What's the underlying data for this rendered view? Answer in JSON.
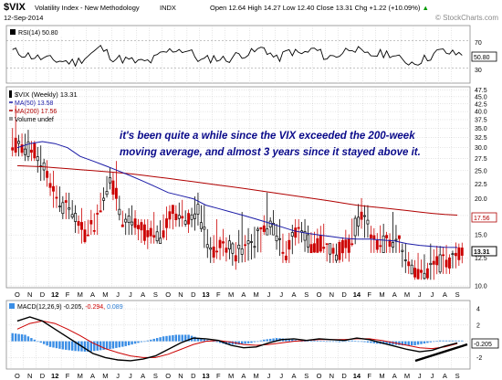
{
  "header": {
    "symbol": "$VIX",
    "name": "Volatility Index - New Methodology",
    "exchange": "INDX",
    "date": "12-Sep-2014",
    "open_label": "Open",
    "open": "12.64",
    "high_label": "High",
    "high": "14.27",
    "low_label": "Low",
    "low": "12.40",
    "close_label": "Close",
    "close": "13.31",
    "chg_label": "Chg",
    "chg": "+1.22 (+10.09%)",
    "chg_arrow": "▲",
    "watermark": "© StockCharts.com"
  },
  "annotation": {
    "line1": "it's been quite a while since the VIX exceeded the 200-week",
    "line2": "moving average, and almost 3 years since it stayed above it."
  },
  "rsi": {
    "legend": "RSI(14) 50.80",
    "tag": "50.80",
    "ticks": [
      "70",
      "30"
    ]
  },
  "price_legend": {
    "main": "$VIX (Weekly) 13.31",
    "ma50": "MA(50) 13.58",
    "ma200": "MA(200) 17.56",
    "volume": "Volume undef"
  },
  "macd_legend": {
    "main": "MACD(12,26,9) -0.205,",
    "signal": "-0.294,",
    "hist": "0.089"
  },
  "colors": {
    "up": "#000000",
    "down": "#cc0000",
    "ma50": "#1a1aa6",
    "ma200": "#b00000",
    "macd": "#000000",
    "signal": "#cc0000",
    "hist": "#3a8ee6",
    "annotation": "#0a0a8a",
    "grid": "#c8c8c8"
  },
  "chart_data": {
    "type": "candlestick",
    "title": "$VIX Volatility Index - New Methodology INDX",
    "frequency": "weekly",
    "x_tick_labels": [
      "O",
      "N",
      "D",
      "12",
      "F",
      "M",
      "A",
      "M",
      "J",
      "J",
      "A",
      "S",
      "O",
      "N",
      "D",
      "13",
      "F",
      "M",
      "A",
      "M",
      "J",
      "J",
      "A",
      "S",
      "O",
      "N",
      "D",
      "14",
      "F",
      "M",
      "A",
      "M",
      "J",
      "J",
      "A",
      "S"
    ],
    "y_scale": "log",
    "price_ticks": [
      "47.5",
      "45.0",
      "42.5",
      "40.0",
      "37.5",
      "35.0",
      "32.5",
      "30.0",
      "27.5",
      "25.0",
      "22.5",
      "20.0",
      "17.5",
      "15.0",
      "12.5",
      "10.0"
    ],
    "price_ylim": [
      10,
      48
    ],
    "last_close": 13.31,
    "ma200_last": 17.56,
    "ma50_last": 13.58,
    "candles_monthly_approx": [
      {
        "label": "O",
        "high": 42,
        "low": 28,
        "close": 30
      },
      {
        "label": "N",
        "high": 37,
        "low": 27,
        "close": 29
      },
      {
        "label": "D",
        "high": 35,
        "low": 22,
        "close": 24
      },
      {
        "label": "12",
        "high": 25,
        "low": 18,
        "close": 19
      },
      {
        "label": "F",
        "high": 21,
        "low": 17,
        "close": 18
      },
      {
        "label": "M",
        "high": 19,
        "low": 14,
        "close": 15
      },
      {
        "label": "A",
        "high": 20,
        "low": 15,
        "close": 17
      },
      {
        "label": "M",
        "high": 26,
        "low": 18,
        "close": 24
      },
      {
        "label": "J",
        "high": 27,
        "low": 16,
        "close": 17
      },
      {
        "label": "J",
        "high": 21,
        "low": 15,
        "close": 16
      },
      {
        "label": "A",
        "high": 17,
        "low": 13,
        "close": 15
      },
      {
        "label": "S",
        "high": 18,
        "low": 14,
        "close": 15
      },
      {
        "label": "O",
        "high": 19,
        "low": 14,
        "close": 18
      },
      {
        "label": "N",
        "high": 23,
        "low": 16,
        "close": 17
      },
      {
        "label": "D",
        "high": 23,
        "low": 15,
        "close": 18
      },
      {
        "label": "13",
        "high": 19,
        "low": 12,
        "close": 13
      },
      {
        "label": "F",
        "high": 17,
        "low": 12,
        "close": 14
      },
      {
        "label": "M",
        "high": 15,
        "low": 11,
        "close": 13
      },
      {
        "label": "A",
        "high": 18,
        "low": 12,
        "close": 14
      },
      {
        "label": "M",
        "high": 16,
        "low": 12,
        "close": 15
      },
      {
        "label": "J",
        "high": 21,
        "low": 15,
        "close": 16
      },
      {
        "label": "J",
        "high": 17,
        "low": 12,
        "close": 13
      },
      {
        "label": "A",
        "high": 17,
        "low": 12,
        "close": 16
      },
      {
        "label": "S",
        "high": 17,
        "low": 13,
        "close": 14
      },
      {
        "label": "O",
        "high": 21,
        "low": 13,
        "close": 14
      },
      {
        "label": "N",
        "high": 14,
        "low": 12,
        "close": 13
      },
      {
        "label": "D",
        "high": 16,
        "low": 12,
        "close": 14
      },
      {
        "label": "14",
        "high": 22,
        "low": 12,
        "close": 18
      },
      {
        "label": "F",
        "high": 19,
        "low": 13,
        "close": 14
      },
      {
        "label": "M",
        "high": 18,
        "low": 13,
        "close": 14
      },
      {
        "label": "A",
        "high": 18,
        "low": 13,
        "close": 14
      },
      {
        "label": "M",
        "high": 14,
        "low": 11,
        "close": 11.5
      },
      {
        "label": "J",
        "high": 13,
        "low": 10.5,
        "close": 11
      },
      {
        "label": "J",
        "high": 14,
        "low": 10.5,
        "close": 12
      },
      {
        "label": "A",
        "high": 18,
        "low": 11,
        "close": 12
      },
      {
        "label": "S",
        "high": 14.3,
        "low": 11.5,
        "close": 13.3
      }
    ],
    "ma50_approx": [
      30,
      31,
      31.5,
      31,
      30,
      28,
      27,
      26,
      25,
      24,
      23,
      22,
      21,
      20.5,
      20,
      19,
      18.5,
      18,
      17.5,
      17,
      16.5,
      16,
      15.5,
      15.2,
      15,
      14.8,
      14.6,
      14.5,
      14.5,
      14.4,
      14.3,
      14.0,
      13.8,
      13.7,
      13.6,
      13.58
    ],
    "ma200_approx": [
      26,
      25.9,
      25.8,
      25.6,
      25.4,
      25.2,
      25.0,
      24.8,
      24.6,
      24.4,
      24.1,
      23.8,
      23.5,
      23.2,
      22.9,
      22.6,
      22.3,
      22.0,
      21.7,
      21.4,
      21.1,
      20.8,
      20.5,
      20.2,
      19.9,
      19.6,
      19.3,
      19.0,
      18.8,
      18.6,
      18.4,
      18.2,
      18.0,
      17.8,
      17.65,
      17.56
    ],
    "rsi_ticks": [
      70,
      30
    ],
    "rsi_last": 50.8,
    "rsi_approx": [
      55,
      50,
      45,
      42,
      40,
      38,
      48,
      60,
      45,
      42,
      38,
      40,
      52,
      58,
      55,
      40,
      45,
      42,
      50,
      52,
      60,
      42,
      55,
      50,
      58,
      45,
      50,
      62,
      48,
      50,
      52,
      40,
      38,
      45,
      55,
      50.8
    ],
    "macd_ticks": [
      4,
      2,
      0,
      -2
    ],
    "macd_ylim": [
      -3.2,
      4.8
    ],
    "macd_last": -0.205,
    "signal_last": -0.294,
    "hist_last": 0.089,
    "macd_approx": [
      2.5,
      3,
      2.5,
      1.5,
      0.5,
      -0.5,
      -1.5,
      -2,
      -2.3,
      -2.4,
      -2.2,
      -1.8,
      -1,
      -0.2,
      0.4,
      0.3,
      0.1,
      -0.5,
      -0.8,
      -0.7,
      -0.2,
      0.2,
      0.3,
      0.1,
      0.3,
      0.2,
      0.1,
      0.4,
      0.2,
      -0.2,
      -0.6,
      -1,
      -1.3,
      -1.1,
      -0.6,
      -0.205
    ],
    "signal_approx": [
      1.5,
      2.2,
      2.5,
      2.2,
      1.5,
      0.7,
      -0.2,
      -0.9,
      -1.4,
      -1.8,
      -2,
      -2,
      -1.6,
      -1,
      -0.4,
      0,
      0.1,
      -0.1,
      -0.4,
      -0.5,
      -0.4,
      -0.2,
      0,
      0.1,
      0.2,
      0.2,
      0.2,
      0.3,
      0.3,
      0.1,
      -0.2,
      -0.5,
      -0.8,
      -0.9,
      -0.7,
      -0.294
    ]
  }
}
